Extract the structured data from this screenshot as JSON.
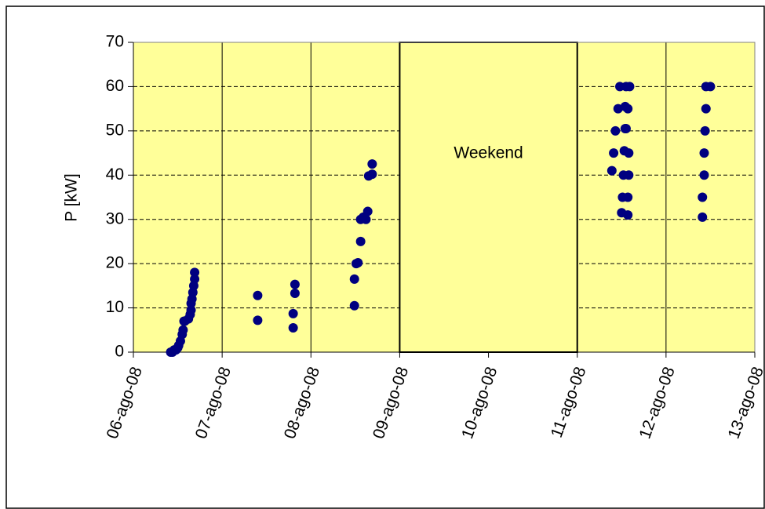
{
  "chart_data": {
    "type": "scatter",
    "ylabel": "P [kW]",
    "series": [
      {
        "color": "#000080",
        "x": [
          6.42,
          6.44,
          6.46,
          6.48,
          6.5,
          6.51,
          6.53,
          6.55,
          6.56,
          6.57,
          6.58,
          6.62,
          6.64,
          6.65,
          6.65,
          6.66,
          6.67,
          6.68,
          6.69,
          6.69,
          7.4,
          7.4,
          7.8,
          7.8,
          7.82,
          7.82,
          8.49,
          8.49,
          8.51,
          8.53,
          8.56,
          8.56,
          8.59,
          8.62,
          8.64,
          8.65,
          8.69,
          8.69,
          11.39,
          11.41,
          11.43,
          11.46,
          11.48,
          11.5,
          11.51,
          11.52,
          11.53,
          11.54,
          11.54,
          11.55,
          11.57,
          11.57,
          11.58,
          11.58,
          11.55,
          11.57,
          11.59,
          12.41,
          12.41,
          12.43,
          12.43,
          12.44,
          12.45,
          12.45,
          12.5
        ],
        "values": [
          0,
          0,
          0.5,
          0.5,
          1,
          1.5,
          2.5,
          4,
          5,
          7,
          7,
          7.5,
          8.5,
          9.5,
          11,
          12,
          13.5,
          15,
          16.5,
          18,
          7.2,
          12.8,
          5.5,
          8.7,
          13.3,
          15.3,
          10.5,
          16.5,
          20,
          20.2,
          25,
          30,
          30.5,
          30,
          31.8,
          39.8,
          40.2,
          42.5,
          41,
          45,
          50,
          55,
          60,
          31.5,
          35,
          40,
          45.5,
          50.5,
          55.5,
          60,
          31,
          35,
          40,
          45,
          50.5,
          55,
          60,
          30.5,
          35,
          40,
          45,
          50,
          55,
          60,
          60
        ]
      }
    ],
    "weekend": {
      "label": "Weekend",
      "x": [
        9,
        11
      ]
    },
    "xlim": [
      6,
      13
    ],
    "xticks": [
      {
        "value": 6,
        "label": "06-ago-08"
      },
      {
        "value": 7,
        "label": "07-ago-08"
      },
      {
        "value": 8,
        "label": "08-ago-08"
      },
      {
        "value": 9,
        "label": "09-ago-08"
      },
      {
        "value": 10,
        "label": "10-ago-08"
      },
      {
        "value": 11,
        "label": "11-ago-08"
      },
      {
        "value": 12,
        "label": "12-ago-08"
      },
      {
        "value": 13,
        "label": "13-ago-08"
      }
    ],
    "ylim": [
      0,
      70
    ],
    "yticks": [
      0,
      10,
      20,
      30,
      40,
      50,
      60,
      70
    ],
    "grid": true,
    "plot_background": "#ffff99"
  }
}
